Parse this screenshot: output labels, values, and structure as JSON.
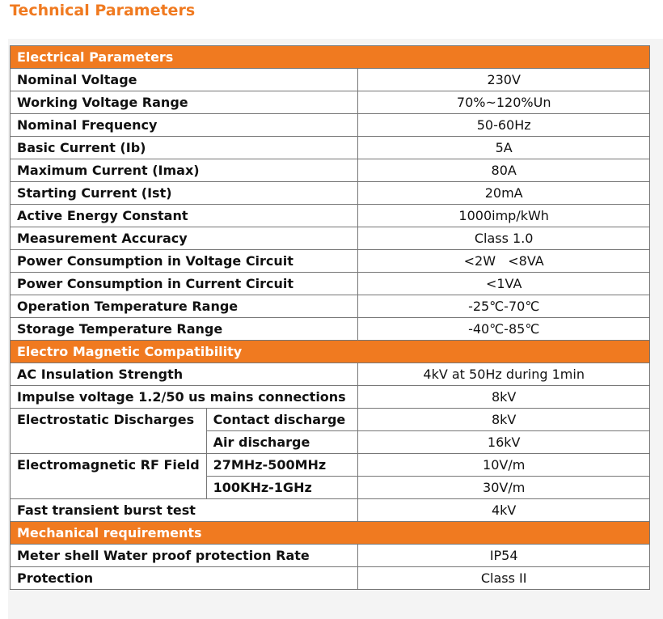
{
  "header": {
    "title": "Technical Parameters"
  },
  "sections": [
    {
      "title": "Electrical Parameters",
      "rows": [
        {
          "label": "Nominal Voltage",
          "value": "230V"
        },
        {
          "label": "Working Voltage Range",
          "value": "70%~120%Un"
        },
        {
          "label": "Nominal Frequency",
          "value": "50-60Hz"
        },
        {
          "label": "Basic Current (Ib)",
          "value": "5A"
        },
        {
          "label": "Maximum Current (Imax)",
          "value": "80A"
        },
        {
          "label": "Starting Current (Ist)",
          "value": "20mA"
        },
        {
          "label": "Active Energy Constant",
          "value": "1000imp/kWh"
        },
        {
          "label": "Measurement Accuracy",
          "value": "Class 1.0"
        },
        {
          "label": "Power Consumption in Voltage Circuit",
          "value": "<2W   <8VA"
        },
        {
          "label": "Power Consumption in Current Circuit",
          "value": "<1VA"
        },
        {
          "label": "Operation Temperature Range",
          "value": "-25℃-70℃"
        },
        {
          "label": "Storage Temperature Range",
          "value": "-40℃-85℃"
        }
      ]
    },
    {
      "title": "Electro Magnetic Compatibility",
      "rows": [
        {
          "label": "AC Insulation Strength",
          "value": "4kV at 50Hz during 1min"
        },
        {
          "label": "Impulse voltage 1.2/50 us mains connections",
          "value": "8kV"
        },
        {
          "label": "Electrostatic Discharges",
          "items": [
            {
              "label": "Contact discharge",
              "value": "8kV"
            },
            {
              "label": "Air discharge",
              "value": "16kV"
            }
          ]
        },
        {
          "label": "Electromagnetic RF Field",
          "items": [
            {
              "label": "27MHz-500MHz",
              "value": "10V/m"
            },
            {
              "label": "100KHz-1GHz",
              "value": "30V/m"
            }
          ]
        },
        {
          "label": "Fast transient burst test",
          "value": "4kV"
        }
      ]
    },
    {
      "title": "Mechanical requirements",
      "rows": [
        {
          "label": "Meter shell Water proof protection Rate",
          "value": "IP54"
        },
        {
          "label": "Protection",
          "value": "Class II"
        }
      ]
    }
  ]
}
